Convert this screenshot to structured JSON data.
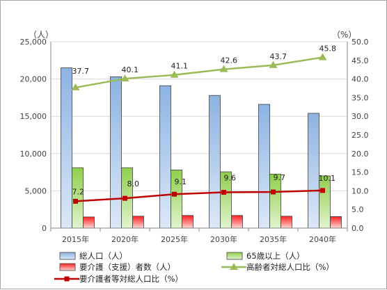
{
  "chart_data": {
    "type": "bar",
    "categories": [
      "2015年",
      "2020年",
      "2025年",
      "2030年",
      "2035年",
      "2040年"
    ],
    "left_unit": "（人）",
    "right_unit": "（%）",
    "y_left": {
      "min": 0,
      "max": 25000,
      "step": 5000,
      "tick_labels": [
        "0",
        "5,000",
        "10,000",
        "15,000",
        "20,000",
        "25,000"
      ]
    },
    "y_right": {
      "min": 0,
      "max": 50,
      "step": 5,
      "tick_labels": [
        "0.0",
        "5.0",
        "10.0",
        "15.0",
        "20.0",
        "25.0",
        "30.0",
        "35.0",
        "40.0",
        "45.0",
        "50.0"
      ]
    },
    "bar_series": [
      {
        "name": "総人口（人）",
        "values": [
          21500,
          20300,
          19100,
          17800,
          16600,
          15400
        ],
        "color": "#8eb4e3"
      },
      {
        "name": "65歳以上（人）",
        "values": [
          8100,
          8100,
          7800,
          7550,
          7250,
          7000
        ],
        "color": "#92d050"
      },
      {
        "name": "要介護（支援）者数（人）",
        "values": [
          1500,
          1600,
          1700,
          1700,
          1600,
          1550
        ],
        "color": "#ff3333"
      }
    ],
    "line_series": [
      {
        "name": "高齢者対総人口比（%）",
        "values": [
          37.7,
          40.1,
          41.1,
          42.6,
          43.7,
          45.8
        ],
        "labels": [
          "37.7",
          "40.1",
          "41.1",
          "42.6",
          "43.7",
          "45.8"
        ],
        "color": "#9bbb59",
        "marker": "triangle"
      },
      {
        "name": "要介護者等対総人口比（%）",
        "values": [
          7.2,
          8.0,
          9.1,
          9.6,
          9.7,
          10.1
        ],
        "labels": [
          "7.2",
          "8.0",
          "9.1",
          "9.6",
          "9.7",
          "10.1"
        ],
        "color": "#c00000",
        "marker": "square"
      }
    ],
    "grid": true,
    "legend_position": "bottom"
  }
}
